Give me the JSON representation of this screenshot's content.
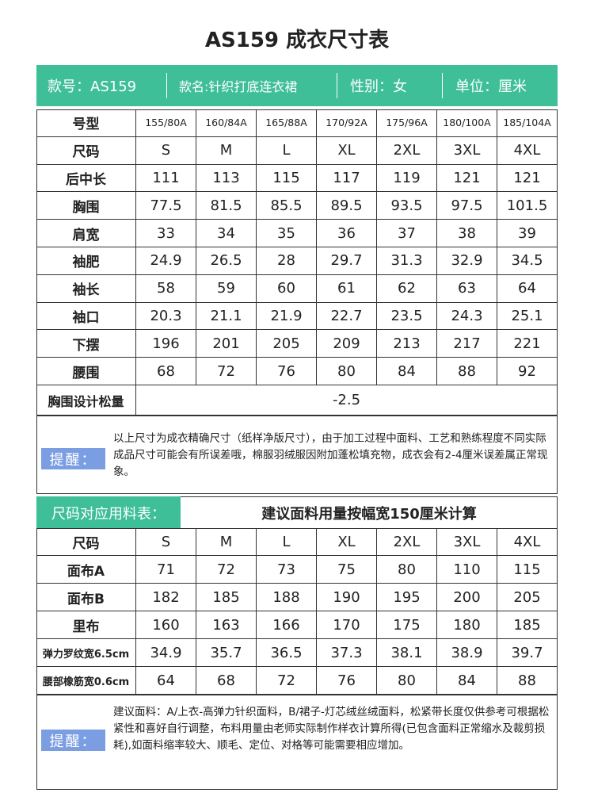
{
  "title": "AS159 成衣尺寸表",
  "info": [
    "款号：AS159",
    "款名:针织打底连衣裙",
    "性别：女",
    "单位：厘米"
  ],
  "size_table": {
    "header": [
      "号型",
      "155/80A",
      "160/84A",
      "165/88A",
      "170/92A",
      "175/96A",
      "180/100A",
      "185/104A"
    ],
    "rows": [
      [
        "尺码",
        "S",
        "M",
        "L",
        "XL",
        "2XL",
        "3XL",
        "4XL"
      ],
      [
        "后中长",
        111,
        113,
        115,
        117,
        119,
        121,
        121
      ],
      [
        "胸围",
        77.5,
        81.5,
        85.5,
        89.5,
        93.5,
        97.5,
        101.5
      ],
      [
        "肩宽",
        33,
        34,
        35,
        36,
        37,
        38,
        39
      ],
      [
        "袖肥",
        24.9,
        26.5,
        28,
        29.7,
        31.3,
        32.9,
        34.5
      ],
      [
        "袖长",
        58,
        59,
        60,
        61,
        62,
        63,
        64
      ],
      [
        "袖口",
        20.3,
        21.1,
        21.9,
        22.7,
        23.5,
        24.3,
        25.1
      ],
      [
        "下摆",
        196,
        201,
        205,
        209,
        213,
        217,
        221
      ],
      [
        "腰围",
        68,
        72,
        76,
        80,
        84,
        88,
        92
      ]
    ],
    "ease": {
      "label": "胸围设计松量",
      "value": -2.5
    }
  },
  "note1": {
    "label": "提醒：",
    "text": "以上尺寸为成衣精确尺寸（纸样净版尺寸），由于加工过程中面料、工艺和熟练程度不同实际成品尺寸可能会有所误差哦，棉服羽绒服因附加蓬松填充物，成衣会有2-4厘米误差属正常现象。"
  },
  "material": {
    "title": "尺码对应用料表：",
    "subtitle": "建议面料用量按幅宽150厘米计算",
    "header": [
      "尺码",
      "S",
      "M",
      "L",
      "XL",
      "2XL",
      "3XL",
      "4XL"
    ],
    "rows": [
      [
        "面布A",
        71,
        72,
        73,
        75,
        80,
        110,
        115
      ],
      [
        "面布B",
        182,
        185,
        188,
        190,
        195,
        200,
        205
      ],
      [
        "里布",
        160,
        163,
        166,
        170,
        175,
        180,
        185
      ],
      [
        "弹力罗纹宽6.5cm",
        34.9,
        35.7,
        36.5,
        37.3,
        38.1,
        38.9,
        39.7
      ],
      [
        "腰部橡筋宽0.6cm",
        64,
        68,
        72,
        76,
        80,
        84,
        88
      ]
    ]
  },
  "note2": {
    "label": "提醒：",
    "text": "建议面料：A/上衣-高弹力针织面料，B/裙子-灯芯绒丝绒面料，松紧带长度仅供参考可根据松紧性和喜好自行调整，布料用量由老师实际制作样衣计算所得(已包含面料正常缩水及裁剪损耗),如面料缩率较大、顺毛、定位、对格等可能需要相应增加。"
  }
}
